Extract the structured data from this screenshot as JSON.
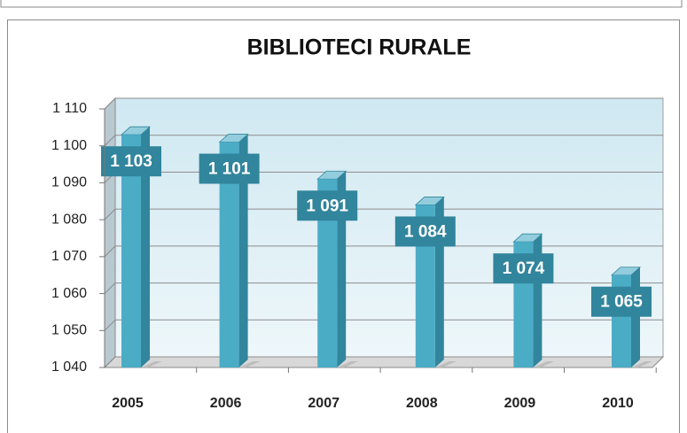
{
  "chart_data": {
    "type": "bar",
    "title": "BIBLIOTECI RURALE",
    "categories": [
      "2005",
      "2006",
      "2007",
      "2008",
      "2009",
      "2010"
    ],
    "values": [
      1103,
      1101,
      1091,
      1084,
      1074,
      1065
    ],
    "value_labels": [
      "1 103",
      "1 101",
      "1 091",
      "1 084",
      "1 074",
      "1 065"
    ],
    "color": "#4bacc6",
    "ylim": [
      1040,
      1110
    ],
    "yticks": [
      {
        "value": 1040,
        "label": "1 040"
      },
      {
        "value": 1050,
        "label": "1 050"
      },
      {
        "value": 1060,
        "label": "1 060"
      },
      {
        "value": 1070,
        "label": "1 070"
      },
      {
        "value": 1080,
        "label": "1 080"
      },
      {
        "value": 1090,
        "label": "1 090"
      },
      {
        "value": 1100,
        "label": "1 100"
      },
      {
        "value": 1110,
        "label": "1 110"
      }
    ],
    "grid": true
  }
}
